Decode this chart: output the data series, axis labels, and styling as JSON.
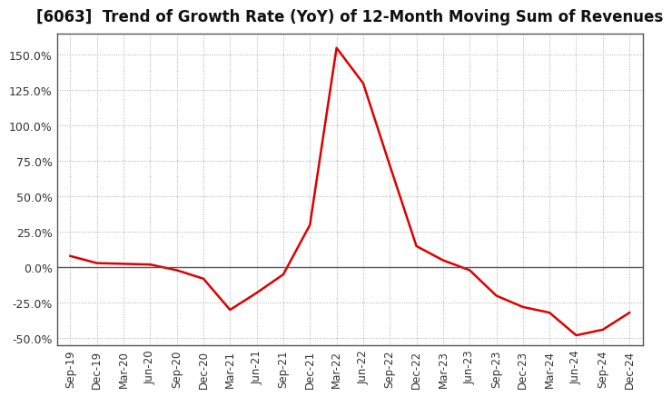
{
  "title": "[6063]  Trend of Growth Rate (YoY) of 12-Month Moving Sum of Revenues",
  "title_fontsize": 12,
  "line_color": "#dd0000",
  "line_width": 1.8,
  "background_color": "#ffffff",
  "plot_bg_color": "#ffffff",
  "grid_color": "#aaaaaa",
  "ylim": [
    -55,
    165
  ],
  "yticks": [
    -50,
    -25,
    0,
    25,
    50,
    75,
    100,
    125,
    150
  ],
  "ytick_labels": [
    "-50.0%",
    "-25.0%",
    "0.0%",
    "25.0%",
    "50.0%",
    "75.0%",
    "100.0%",
    "125.0%",
    "150.0%"
  ],
  "dates": [
    "Sep-19",
    "Dec-19",
    "Mar-20",
    "Jun-20",
    "Sep-20",
    "Dec-20",
    "Mar-21",
    "Jun-21",
    "Sep-21",
    "Dec-21",
    "Mar-22",
    "Jun-22",
    "Sep-22",
    "Dec-22",
    "Mar-23",
    "Jun-23",
    "Sep-23",
    "Dec-23",
    "Mar-24",
    "Jun-24",
    "Sep-24",
    "Dec-24"
  ],
  "values": [
    8.0,
    3.0,
    2.5,
    2.0,
    -2.0,
    -8.0,
    -30.0,
    -18.0,
    -5.0,
    30.0,
    155.0,
    130.0,
    72.0,
    15.0,
    5.0,
    -2.0,
    -20.0,
    -28.0,
    -32.0,
    -48.0,
    -44.0,
    -32.0
  ],
  "xtick_labels": [
    "Sep-19",
    "Dec-19",
    "Mar-20",
    "Jun-20",
    "Sep-20",
    "Dec-20",
    "Mar-21",
    "Jun-21",
    "Sep-21",
    "Dec-21",
    "Mar-22",
    "Jun-22",
    "Sep-22",
    "Dec-22",
    "Mar-23",
    "Jun-23",
    "Sep-23",
    "Dec-23",
    "Mar-24",
    "Jun-24",
    "Sep-24",
    "Dec-24"
  ]
}
